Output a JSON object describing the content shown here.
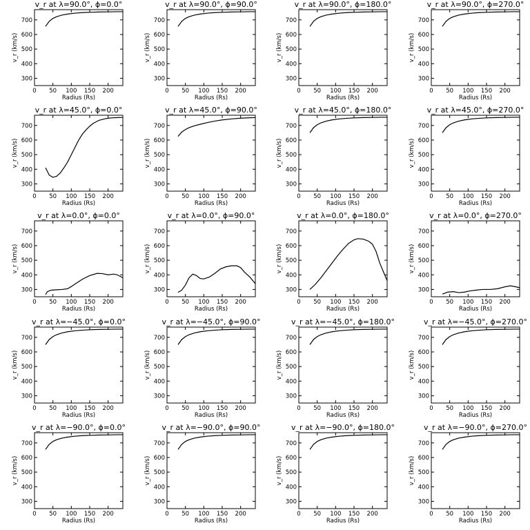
{
  "chart_data": [
    {
      "type": "line",
      "title": "v_r at λ=90.0°, ϕ=0.0°",
      "xlabel": "Radius (Rs)",
      "ylabel": "v_r (km/s)",
      "xlim": [
        0,
        240
      ],
      "ylim": [
        250,
        770
      ],
      "xticks": [
        0,
        50,
        100,
        150,
        200
      ],
      "yticks": [
        300,
        400,
        500,
        600,
        700
      ],
      "x": [
        30,
        40,
        50,
        60,
        75,
        90,
        110,
        130,
        150,
        175,
        200,
        225,
        240
      ],
      "y": [
        655,
        690,
        710,
        722,
        733,
        740,
        746,
        750,
        752,
        754,
        755,
        756,
        756
      ]
    },
    {
      "type": "line",
      "title": "v_r at λ=90.0°, ϕ=90.0°",
      "xlabel": "Radius (Rs)",
      "ylabel": "v_r (km/s)",
      "xlim": [
        0,
        240
      ],
      "ylim": [
        250,
        770
      ],
      "xticks": [
        0,
        50,
        100,
        150,
        200
      ],
      "yticks": [
        300,
        400,
        500,
        600,
        700
      ],
      "x": [
        30,
        40,
        50,
        60,
        75,
        90,
        110,
        130,
        150,
        175,
        200,
        225,
        240
      ],
      "y": [
        655,
        690,
        710,
        722,
        733,
        740,
        746,
        750,
        752,
        754,
        755,
        756,
        756
      ]
    },
    {
      "type": "line",
      "title": "v_r at λ=90.0°, ϕ=180.0°",
      "xlabel": "Radius (Rs)",
      "ylabel": "v_r (km/s)",
      "xlim": [
        0,
        240
      ],
      "ylim": [
        250,
        770
      ],
      "xticks": [
        0,
        50,
        100,
        150,
        200
      ],
      "yticks": [
        300,
        400,
        500,
        600,
        700
      ],
      "x": [
        30,
        40,
        50,
        60,
        75,
        90,
        110,
        130,
        150,
        175,
        200,
        225,
        240
      ],
      "y": [
        655,
        690,
        710,
        722,
        733,
        740,
        746,
        750,
        752,
        754,
        755,
        756,
        756
      ]
    },
    {
      "type": "line",
      "title": "v_r at λ=90.0°, ϕ=270.0°",
      "xlabel": "Radius (Rs)",
      "ylabel": "v_r (km/s)",
      "xlim": [
        0,
        240
      ],
      "ylim": [
        250,
        770
      ],
      "xticks": [
        0,
        50,
        100,
        150,
        200
      ],
      "yticks": [
        300,
        400,
        500,
        600,
        700
      ],
      "x": [
        30,
        40,
        50,
        60,
        75,
        90,
        110,
        130,
        150,
        175,
        200,
        225,
        240
      ],
      "y": [
        655,
        690,
        710,
        722,
        733,
        740,
        746,
        750,
        752,
        754,
        755,
        756,
        756
      ]
    },
    {
      "type": "line",
      "title": "v_r at λ=45.0°, ϕ=0.0°",
      "xlabel": "Radius (Rs)",
      "ylabel": "v_r (km/s)",
      "xlim": [
        0,
        240
      ],
      "ylim": [
        250,
        770
      ],
      "xticks": [
        0,
        50,
        100,
        150,
        200
      ],
      "yticks": [
        300,
        400,
        500,
        600,
        700
      ],
      "x": [
        30,
        40,
        50,
        60,
        70,
        80,
        90,
        100,
        110,
        120,
        130,
        140,
        150,
        160,
        175,
        190,
        200,
        210,
        225,
        240
      ],
      "y": [
        410,
        360,
        345,
        352,
        375,
        410,
        450,
        500,
        550,
        600,
        640,
        670,
        695,
        715,
        735,
        745,
        750,
        752,
        754,
        755
      ]
    },
    {
      "type": "line",
      "title": "v_r at λ=45.0°, ϕ=90.0°",
      "xlabel": "Radius (Rs)",
      "ylabel": "v_r (km/s)",
      "xlim": [
        0,
        240
      ],
      "ylim": [
        250,
        770
      ],
      "xticks": [
        0,
        50,
        100,
        150,
        200
      ],
      "yticks": [
        300,
        400,
        500,
        600,
        700
      ],
      "x": [
        30,
        40,
        50,
        60,
        75,
        90,
        110,
        130,
        150,
        175,
        200,
        225,
        240
      ],
      "y": [
        625,
        655,
        672,
        685,
        698,
        708,
        720,
        730,
        738,
        745,
        750,
        753,
        754
      ]
    },
    {
      "type": "line",
      "title": "v_r at λ=45.0°, ϕ=180.0°",
      "xlabel": "Radius (Rs)",
      "ylabel": "v_r (km/s)",
      "xlim": [
        0,
        240
      ],
      "ylim": [
        250,
        770
      ],
      "xticks": [
        0,
        50,
        100,
        150,
        200
      ],
      "yticks": [
        300,
        400,
        500,
        600,
        700
      ],
      "x": [
        30,
        40,
        50,
        60,
        75,
        90,
        110,
        130,
        150,
        175,
        200,
        225,
        240
      ],
      "y": [
        650,
        685,
        705,
        718,
        730,
        738,
        745,
        749,
        752,
        754,
        755,
        756,
        756
      ]
    },
    {
      "type": "line",
      "title": "v_r at λ=45.0°, ϕ=270.0°",
      "xlabel": "Radius (Rs)",
      "ylabel": "v_r (km/s)",
      "xlim": [
        0,
        240
      ],
      "ylim": [
        250,
        770
      ],
      "xticks": [
        0,
        50,
        100,
        150,
        200
      ],
      "yticks": [
        300,
        400,
        500,
        600,
        700
      ],
      "x": [
        30,
        40,
        50,
        60,
        75,
        90,
        110,
        130,
        150,
        175,
        200,
        225,
        240
      ],
      "y": [
        650,
        685,
        705,
        718,
        730,
        738,
        745,
        749,
        752,
        754,
        755,
        756,
        756
      ]
    },
    {
      "type": "line",
      "title": "v_r at λ=0.0°, ϕ=0.0°",
      "xlabel": "Radius (Rs)",
      "ylabel": "v_r (km/s)",
      "xlim": [
        0,
        240
      ],
      "ylim": [
        250,
        770
      ],
      "xticks": [
        0,
        50,
        100,
        150,
        200
      ],
      "yticks": [
        300,
        400,
        500,
        600,
        700
      ],
      "x": [
        30,
        35,
        45,
        60,
        75,
        90,
        100,
        115,
        130,
        150,
        170,
        185,
        200,
        215,
        225,
        240
      ],
      "y": [
        265,
        285,
        295,
        298,
        300,
        305,
        320,
        345,
        370,
        395,
        410,
        408,
        400,
        405,
        400,
        380
      ]
    },
    {
      "type": "line",
      "title": "v_r at λ=0.0°, ϕ=90.0°",
      "xlabel": "Radius (Rs)",
      "ylabel": "v_r (km/s)",
      "xlim": [
        0,
        240
      ],
      "ylim": [
        250,
        770
      ],
      "xticks": [
        0,
        50,
        100,
        150,
        200
      ],
      "yticks": [
        300,
        400,
        500,
        600,
        700
      ],
      "x": [
        30,
        40,
        50,
        60,
        70,
        80,
        90,
        100,
        115,
        130,
        145,
        160,
        175,
        190,
        200,
        210,
        225,
        240
      ],
      "y": [
        280,
        295,
        330,
        380,
        405,
        395,
        375,
        372,
        385,
        410,
        440,
        455,
        462,
        462,
        450,
        420,
        385,
        340
      ]
    },
    {
      "type": "line",
      "title": "v_r at λ=0.0°, ϕ=180.0°",
      "xlabel": "Radius (Rs)",
      "ylabel": "v_r (km/s)",
      "xlim": [
        0,
        240
      ],
      "ylim": [
        250,
        770
      ],
      "xticks": [
        0,
        50,
        100,
        150,
        200
      ],
      "yticks": [
        300,
        400,
        500,
        600,
        700
      ],
      "x": [
        30,
        45,
        60,
        75,
        90,
        105,
        120,
        135,
        150,
        160,
        175,
        190,
        200,
        210,
        220,
        230,
        240
      ],
      "y": [
        300,
        335,
        380,
        430,
        480,
        530,
        575,
        615,
        640,
        648,
        645,
        630,
        610,
        560,
        480,
        420,
        360
      ]
    },
    {
      "type": "line",
      "title": "v_r at λ=0.0°, ϕ=270.0°",
      "xlabel": "Radius (Rs)",
      "ylabel": "v_r (km/s)",
      "xlim": [
        0,
        240
      ],
      "ylim": [
        250,
        770
      ],
      "xticks": [
        0,
        50,
        100,
        150,
        200
      ],
      "yticks": [
        300,
        400,
        500,
        600,
        700
      ],
      "x": [
        30,
        45,
        60,
        75,
        90,
        105,
        120,
        140,
        160,
        180,
        200,
        215,
        230,
        240
      ],
      "y": [
        268,
        282,
        285,
        278,
        282,
        290,
        295,
        300,
        300,
        305,
        318,
        325,
        318,
        312
      ]
    },
    {
      "type": "line",
      "title": "v_r at λ=−45.0°, ϕ=0.0°",
      "xlabel": "Radius (Rs)",
      "ylabel": "v_r (km/s)",
      "xlim": [
        0,
        240
      ],
      "ylim": [
        250,
        770
      ],
      "xticks": [
        0,
        50,
        100,
        150,
        200
      ],
      "yticks": [
        300,
        400,
        500,
        600,
        700
      ],
      "x": [
        30,
        40,
        50,
        60,
        75,
        90,
        110,
        130,
        150,
        175,
        200,
        225,
        240
      ],
      "y": [
        650,
        685,
        705,
        718,
        730,
        738,
        745,
        749,
        752,
        754,
        755,
        756,
        756
      ]
    },
    {
      "type": "line",
      "title": "v_r at λ=−45.0°, ϕ=90.0°",
      "xlabel": "Radius (Rs)",
      "ylabel": "v_r (km/s)",
      "xlim": [
        0,
        240
      ],
      "ylim": [
        250,
        770
      ],
      "xticks": [
        0,
        50,
        100,
        150,
        200
      ],
      "yticks": [
        300,
        400,
        500,
        600,
        700
      ],
      "x": [
        30,
        40,
        50,
        60,
        75,
        90,
        110,
        130,
        150,
        175,
        200,
        225,
        240
      ],
      "y": [
        650,
        685,
        705,
        718,
        730,
        738,
        745,
        749,
        752,
        754,
        755,
        756,
        756
      ]
    },
    {
      "type": "line",
      "title": "v_r at λ=−45.0°, ϕ=180.0°",
      "xlabel": "Radius (Rs)",
      "ylabel": "v_r (km/s)",
      "xlim": [
        0,
        240
      ],
      "ylim": [
        250,
        770
      ],
      "xticks": [
        0,
        50,
        100,
        150,
        200
      ],
      "yticks": [
        300,
        400,
        500,
        600,
        700
      ],
      "x": [
        30,
        40,
        50,
        60,
        75,
        90,
        110,
        130,
        150,
        175,
        200,
        225,
        240
      ],
      "y": [
        650,
        685,
        705,
        718,
        730,
        738,
        745,
        749,
        752,
        754,
        755,
        756,
        756
      ]
    },
    {
      "type": "line",
      "title": "v_r at λ=−45.0°, ϕ=270.0°",
      "xlabel": "Radius (Rs)",
      "ylabel": "v_r (km/s)",
      "xlim": [
        0,
        240
      ],
      "ylim": [
        250,
        770
      ],
      "xticks": [
        0,
        50,
        100,
        150,
        200
      ],
      "yticks": [
        300,
        400,
        500,
        600,
        700
      ],
      "x": [
        30,
        40,
        50,
        60,
        75,
        90,
        110,
        130,
        150,
        175,
        200,
        225,
        240
      ],
      "y": [
        650,
        685,
        705,
        718,
        730,
        738,
        745,
        749,
        752,
        754,
        755,
        756,
        756
      ]
    },
    {
      "type": "line",
      "title": "v_r at λ=−90.0°, ϕ=0.0°",
      "xlabel": "Radius (Rs)",
      "ylabel": "v_r (km/s)",
      "xlim": [
        0,
        240
      ],
      "ylim": [
        250,
        770
      ],
      "xticks": [
        0,
        50,
        100,
        150,
        200
      ],
      "yticks": [
        300,
        400,
        500,
        600,
        700
      ],
      "x": [
        30,
        40,
        50,
        60,
        75,
        90,
        110,
        130,
        150,
        175,
        200,
        225,
        240
      ],
      "y": [
        655,
        690,
        710,
        722,
        733,
        740,
        746,
        750,
        752,
        754,
        755,
        756,
        756
      ]
    },
    {
      "type": "line",
      "title": "v_r at λ=−90.0°, ϕ=90.0°",
      "xlabel": "Radius (Rs)",
      "ylabel": "v_r (km/s)",
      "xlim": [
        0,
        240
      ],
      "ylim": [
        250,
        770
      ],
      "xticks": [
        0,
        50,
        100,
        150,
        200
      ],
      "yticks": [
        300,
        400,
        500,
        600,
        700
      ],
      "x": [
        30,
        40,
        50,
        60,
        75,
        90,
        110,
        130,
        150,
        175,
        200,
        225,
        240
      ],
      "y": [
        655,
        690,
        710,
        722,
        733,
        740,
        746,
        750,
        752,
        754,
        755,
        756,
        756
      ]
    },
    {
      "type": "line",
      "title": "v_r at λ=−90.0°, ϕ=180.0°",
      "xlabel": "Radius (Rs)",
      "ylabel": "v_r (km/s)",
      "xlim": [
        0,
        240
      ],
      "ylim": [
        250,
        770
      ],
      "xticks": [
        0,
        50,
        100,
        150,
        200
      ],
      "yticks": [
        300,
        400,
        500,
        600,
        700
      ],
      "x": [
        30,
        40,
        50,
        60,
        75,
        90,
        110,
        130,
        150,
        175,
        200,
        225,
        240
      ],
      "y": [
        655,
        690,
        710,
        722,
        733,
        740,
        746,
        750,
        752,
        754,
        755,
        756,
        756
      ]
    },
    {
      "type": "line",
      "title": "v_r at λ=−90.0°, ϕ=270.0°",
      "xlabel": "Radius (Rs)",
      "ylabel": "v_r (km/s)",
      "xlim": [
        0,
        240
      ],
      "ylim": [
        250,
        770
      ],
      "xticks": [
        0,
        50,
        100,
        150,
        200
      ],
      "yticks": [
        300,
        400,
        500,
        600,
        700
      ],
      "x": [
        30,
        40,
        50,
        60,
        75,
        90,
        110,
        130,
        150,
        175,
        200,
        225,
        240
      ],
      "y": [
        655,
        690,
        710,
        722,
        733,
        740,
        746,
        750,
        752,
        754,
        755,
        756,
        756
      ]
    }
  ]
}
